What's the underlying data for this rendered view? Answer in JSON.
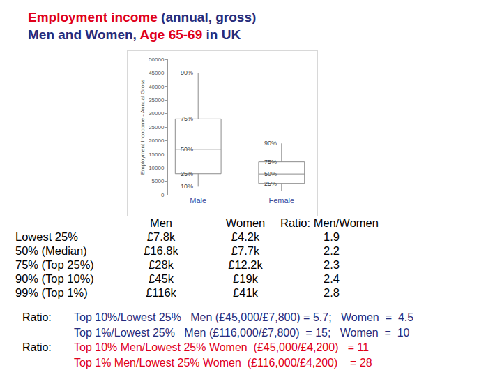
{
  "header": {
    "title_lines": [
      [
        {
          "text": "Employment income",
          "color": "#e0001b"
        },
        {
          "text": " (annual, gross)",
          "color": "#262c7c"
        }
      ],
      [
        {
          "text": "Men and Women, ",
          "color": "#262c7c"
        },
        {
          "text": "Age 65-69",
          "color": "#e0001b"
        },
        {
          "text": " in UK",
          "color": "#262c7c"
        }
      ]
    ]
  },
  "chart_data": {
    "type": "box",
    "y_label": "Employment Incocome - Annual Gross",
    "categories": [
      "Male",
      "Female"
    ],
    "ylim": [
      0,
      50000
    ],
    "yticks": [
      0,
      5000,
      10000,
      15000,
      20000,
      25000,
      30000,
      35000,
      40000,
      45000,
      50000
    ],
    "grid": false,
    "color": "#8c8c8c",
    "series": [
      {
        "lower_whisker": 3000,
        "q1": 7800,
        "median": 16800,
        "q3": 28000,
        "upper_whisker": 45000,
        "percentile_labels": [
          {
            "label": "90%",
            "value": 45000
          },
          {
            "label": "75%",
            "value": 28000
          },
          {
            "label": "50%",
            "value": 16800
          },
          {
            "label": "25%",
            "value": 7800
          },
          {
            "label": "10%",
            "value": 3000
          }
        ]
      },
      {
        "lower_whisker": 1500,
        "q1": 4200,
        "median": 7700,
        "q3": 12200,
        "upper_whisker": 19000,
        "percentile_labels": [
          {
            "label": "90%",
            "value": 19000
          },
          {
            "label": "75%",
            "value": 12200
          },
          {
            "label": "50%",
            "value": 7700
          },
          {
            "label": "25%",
            "value": 4200
          }
        ]
      }
    ]
  },
  "table": {
    "color": "#000000",
    "header": [
      "Men",
      "Women",
      "Ratio: Men/Women"
    ],
    "rows": [
      [
        "Lowest 25%",
        "£7.8k",
        "£4.2k",
        "1.9"
      ],
      [
        "50% (Median)",
        "£16.8k",
        "£7.7k",
        "2.2"
      ],
      [
        "75% (Top 25%)",
        "£28k",
        "£12.2k",
        "2.3"
      ],
      [
        "90% (Top 10%)",
        "£45k",
        "£19k",
        "2.4"
      ],
      [
        "99% (Top 1%)",
        "£116k",
        "£41k",
        "2.8"
      ]
    ]
  },
  "ratios": [
    {
      "label": "Ratio:",
      "text": "Top 10%/Lowest 25%   Men (£45,000/£7,800) = 5.7;   Women  =  4.5",
      "color": "#262c7c"
    },
    {
      "text": "Top 1%/Lowest 25%   Men (£116,000/£7,800)  = 15;   Women  =  10",
      "color": "#262c7c"
    },
    {
      "label": "Ratio:",
      "text": "Top 10% Men/Lowest 25% Women  (£45,000/£4,200)   = 11",
      "color": "#e0001b"
    },
    {
      "text": "Top 1% Men/Lowest 25% Women  (£116,000/£4,200)    = 28",
      "color": "#e0001b"
    }
  ]
}
